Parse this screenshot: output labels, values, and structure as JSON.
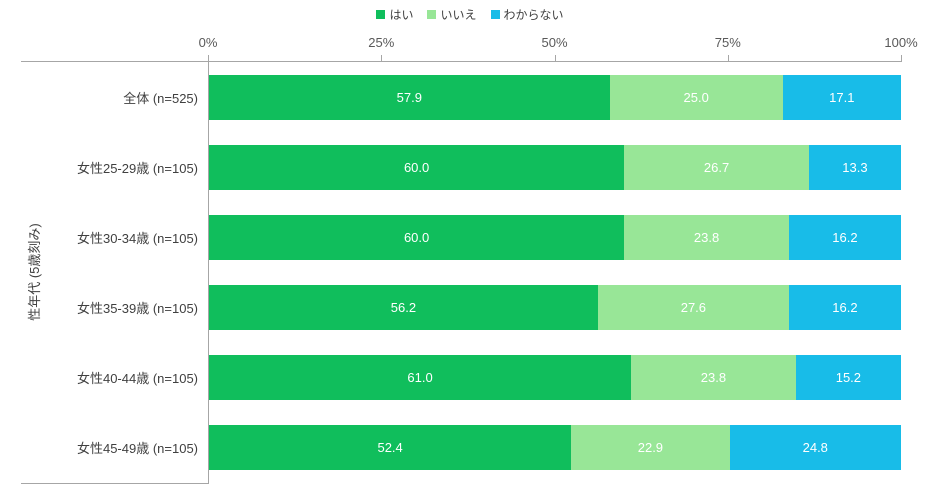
{
  "colors": {
    "series_yes": "#10be5c",
    "series_no": "#98e697",
    "series_unknown": "#18bce8",
    "axis_line": "#a6a6a6",
    "tick_text": "#595959",
    "category_text": "#404040",
    "value_text": "#ffffff",
    "background": "#ffffff"
  },
  "chart_data": {
    "type": "bar",
    "stacked": true,
    "orientation": "horizontal",
    "title": "",
    "ylabel": "性年代 (5歳刻み)",
    "xlabel": "",
    "xlim": [
      0,
      100
    ],
    "x_ticks": [
      "0%",
      "25%",
      "50%",
      "75%",
      "100%"
    ],
    "legend_position": "top-center",
    "value_labels": "inside segments, one decimal place",
    "categories": [
      "全体 (n=525)",
      "女性25-29歳 (n=105)",
      "女性30-34歳 (n=105)",
      "女性35-39歳 (n=105)",
      "女性40-44歳 (n=105)",
      "女性45-49歳 (n=105)"
    ],
    "series": [
      {
        "name": "はい",
        "color": "#10be5c",
        "values": [
          57.9,
          60.0,
          60.0,
          56.2,
          61.0,
          52.4
        ]
      },
      {
        "name": "いいえ",
        "color": "#98e697",
        "values": [
          25.0,
          26.7,
          23.8,
          27.6,
          23.8,
          22.9
        ]
      },
      {
        "name": "わからない",
        "color": "#18bce8",
        "values": [
          17.1,
          13.3,
          16.2,
          16.2,
          15.2,
          24.8
        ]
      }
    ]
  }
}
